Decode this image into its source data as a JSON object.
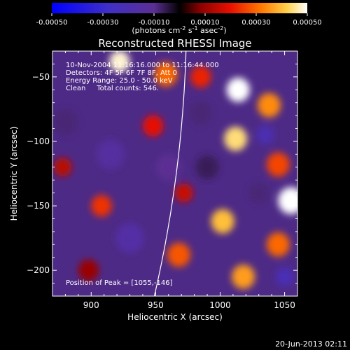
{
  "chart_data": {
    "type": "heatmap",
    "title": "Reconstructed RHESSI Image",
    "colorbar": {
      "ticks": [
        "-0.00050",
        "-0.00030",
        "-0.00010",
        "0.00010",
        "0.00030",
        "0.00050"
      ],
      "range": [
        -0.0005,
        0.0005
      ],
      "label_main": "(photons cm",
      "label_exp1": "-2",
      "label_mid": " s",
      "label_exp2": "-1",
      "label_end": " asec",
      "label_exp3": "-2",
      "label_close": ")"
    },
    "xlabel": "Heliocentric X (arcsec)",
    "ylabel": "Heliocentric Y (arcsec)",
    "xlim": [
      870,
      1060
    ],
    "ylim": [
      -220,
      -30
    ],
    "xticks": [
      900,
      950,
      1000,
      1050
    ],
    "yticks": [
      -200,
      -150,
      -100,
      -50
    ],
    "annotations": [
      "10-Nov-2004 11:16:16.000 to 11:16:44.000",
      "Detectors: 4F 5F 6F 7F 8F, Att 0",
      "Energy Range: 25.0 - 50.0 keV",
      "Clean     Total counts: 546."
    ],
    "peak_label": "Position of Peak = [1055,-146]",
    "peak": [
      1055,
      -146
    ],
    "blobs": [
      {
        "x": 922,
        "y": -38,
        "v": 0.00048,
        "r": 8
      },
      {
        "x": 958,
        "y": -48,
        "v": 0.0003,
        "r": 9
      },
      {
        "x": 1014,
        "y": -60,
        "v": 0.0005,
        "r": 9
      },
      {
        "x": 1038,
        "y": -72,
        "v": 0.00034,
        "r": 9
      },
      {
        "x": 985,
        "y": -50,
        "v": 0.00022,
        "r": 8
      },
      {
        "x": 948,
        "y": -88,
        "v": 0.0002,
        "r": 8
      },
      {
        "x": 1012,
        "y": -98,
        "v": 0.00044,
        "r": 9
      },
      {
        "x": 1045,
        "y": -118,
        "v": 0.00026,
        "r": 9
      },
      {
        "x": 878,
        "y": -120,
        "v": 0.00014,
        "r": 7
      },
      {
        "x": 908,
        "y": -150,
        "v": 0.00024,
        "r": 8
      },
      {
        "x": 972,
        "y": -140,
        "v": 0.00016,
        "r": 7
      },
      {
        "x": 1002,
        "y": -162,
        "v": 0.0004,
        "r": 9
      },
      {
        "x": 1055,
        "y": -146,
        "v": 0.0005,
        "r": 10
      },
      {
        "x": 1045,
        "y": -180,
        "v": 0.0003,
        "r": 9
      },
      {
        "x": 968,
        "y": -188,
        "v": 0.00028,
        "r": 9
      },
      {
        "x": 1018,
        "y": -205,
        "v": 0.00036,
        "r": 9
      },
      {
        "x": 898,
        "y": -200,
        "v": 0.0001,
        "r": 8
      },
      {
        "x": 880,
        "y": -85,
        "v": -8e-05,
        "r": 10
      },
      {
        "x": 915,
        "y": -110,
        "v": -0.00014,
        "r": 11
      },
      {
        "x": 930,
        "y": -175,
        "v": -0.00016,
        "r": 11
      },
      {
        "x": 960,
        "y": -120,
        "v": -0.0001,
        "r": 10
      },
      {
        "x": 990,
        "y": -120,
        "v": -6e-05,
        "r": 9
      },
      {
        "x": 1035,
        "y": -95,
        "v": -0.0002,
        "r": 7
      },
      {
        "x": 1050,
        "y": -205,
        "v": -0.00022,
        "r": 7
      },
      {
        "x": 985,
        "y": -78,
        "v": -8e-05,
        "r": 9
      },
      {
        "x": 1030,
        "y": -140,
        "v": -8e-05,
        "r": 8
      }
    ]
  },
  "footer": {
    "timestamp": "20-Jun-2013 02:11"
  }
}
